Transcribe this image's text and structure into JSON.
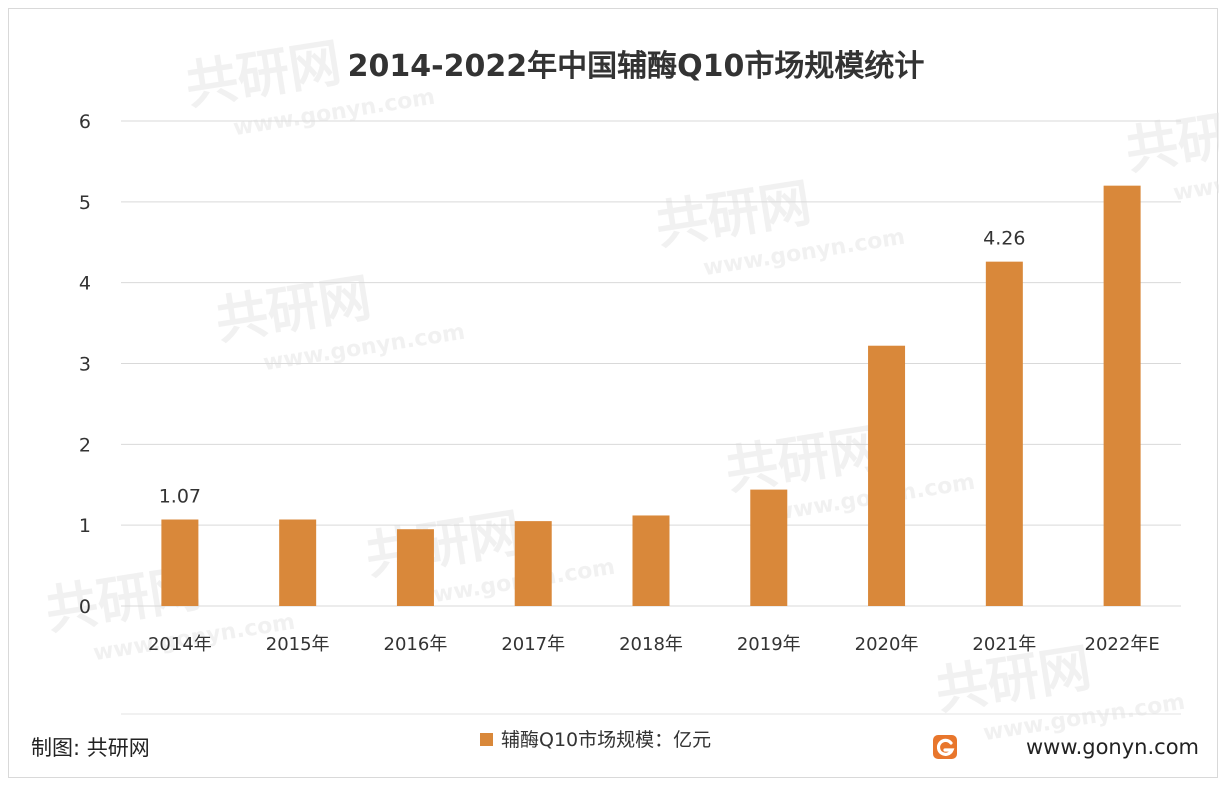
{
  "chart_data": {
    "type": "bar",
    "title": "2014-2022年中国辅酶Q10市场规模统计",
    "categories": [
      "2014年",
      "2015年",
      "2016年",
      "2017年",
      "2018年",
      "2019年",
      "2020年",
      "2021年",
      "2022年E"
    ],
    "series": [
      {
        "name": "辅酶Q10市场规模：亿元",
        "values": [
          1.07,
          1.07,
          0.95,
          1.05,
          1.12,
          1.44,
          3.22,
          4.26,
          5.2
        ],
        "data_labels": [
          "1.07",
          "",
          "",
          "",
          "",
          "",
          "",
          "4.26",
          ""
        ]
      }
    ],
    "yticks": [
      "0",
      "1",
      "2",
      "3",
      "4",
      "5",
      "6"
    ],
    "ylim": [
      0,
      6
    ],
    "grid": true,
    "legend": "bottom-center",
    "bar_color": "#d9883a"
  },
  "footer": {
    "source": "制图: 共研网",
    "website": "www.gonyn.com"
  },
  "watermark": {
    "brand": "共研网",
    "url": "www.gonyn.com"
  },
  "colors": {
    "logo_orange": "#e8762c",
    "grid": "#d9d9d9"
  }
}
